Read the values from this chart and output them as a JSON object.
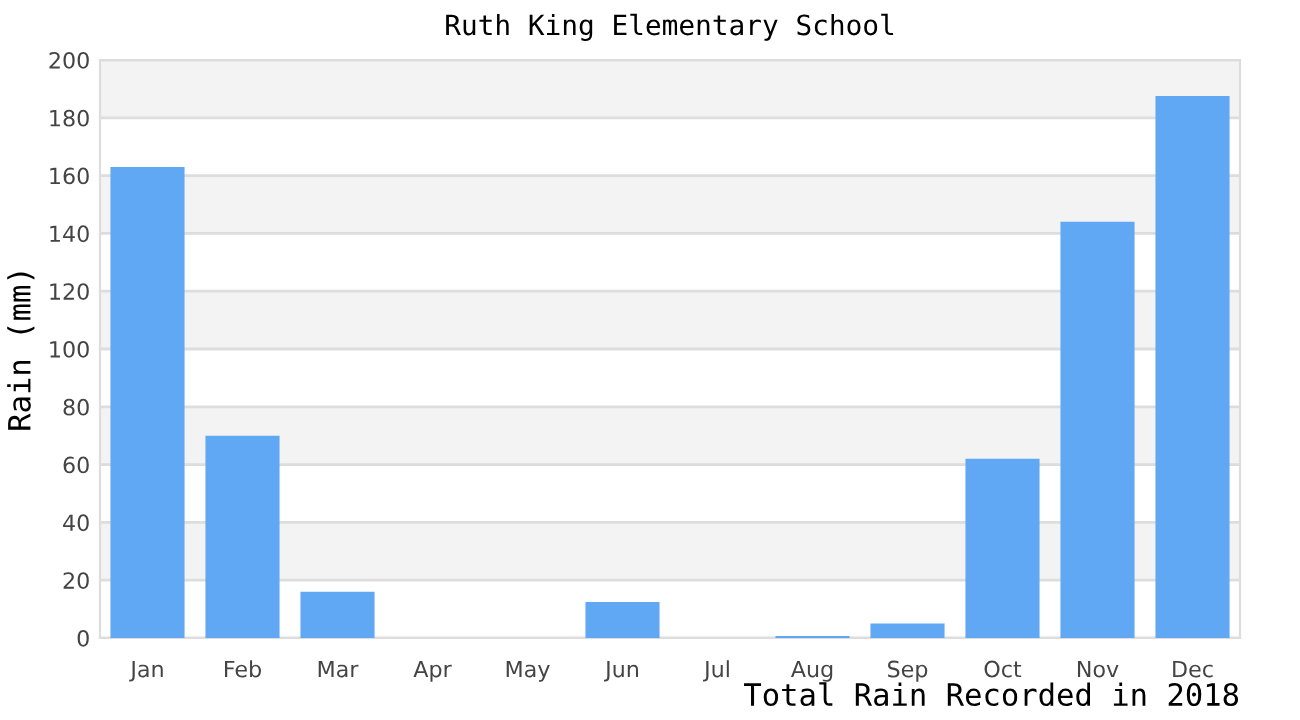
{
  "chart_data": {
    "type": "bar",
    "title": "Ruth King Elementary School",
    "xlabel": "Total Rain Recorded in 2018",
    "ylabel": "Rain (mm)",
    "categories": [
      "Jan",
      "Feb",
      "Mar",
      "Apr",
      "May",
      "Jun",
      "Jul",
      "Aug",
      "Sep",
      "Oct",
      "Nov",
      "Dec"
    ],
    "values": [
      163,
      70,
      16,
      0,
      0,
      12.5,
      0,
      0.7,
      5,
      62,
      144,
      187.5
    ],
    "color": "#60a8f4",
    "ylim": [
      0,
      200
    ],
    "yticks": [
      0,
      20,
      40,
      60,
      80,
      100,
      120,
      140,
      160,
      180,
      200
    ],
    "grid": "y"
  }
}
